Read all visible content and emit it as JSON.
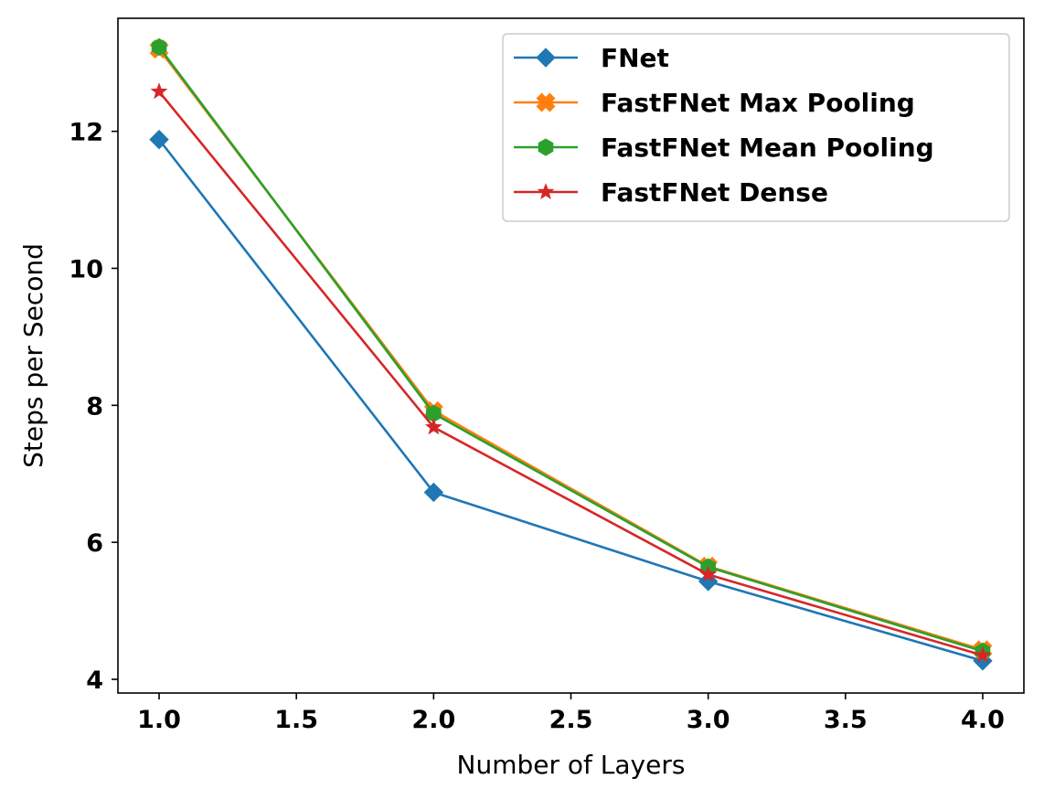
{
  "chart_data": {
    "type": "line",
    "title": "",
    "xlabel": "Number of Layers",
    "ylabel": "Steps per Second",
    "xlim": [
      0.85,
      4.15
    ],
    "ylim": [
      3.8,
      13.65
    ],
    "xticks": [
      1.0,
      1.5,
      2.0,
      2.5,
      3.0,
      3.5,
      4.0
    ],
    "xtick_labels": [
      "1.0",
      "1.5",
      "2.0",
      "2.5",
      "3.0",
      "3.5",
      "4.0"
    ],
    "yticks": [
      4,
      6,
      8,
      10,
      12
    ],
    "ytick_labels": [
      "4",
      "6",
      "8",
      "10",
      "12"
    ],
    "grid": false,
    "legend_position": "top-right",
    "x": [
      1.0,
      2.0,
      3.0,
      4.0
    ],
    "series": [
      {
        "name": "FNet",
        "values": [
          11.88,
          6.73,
          5.43,
          4.27
        ],
        "color": "#1f77b4",
        "marker": "diamond"
      },
      {
        "name": "FastFNet Max Pooling",
        "values": [
          13.2,
          7.92,
          5.65,
          4.43
        ],
        "color": "#ff7f0e",
        "marker": "cross"
      },
      {
        "name": "FastFNet Mean Pooling",
        "values": [
          13.23,
          7.88,
          5.64,
          4.41
        ],
        "color": "#2ca02c",
        "marker": "hexagon"
      },
      {
        "name": "FastFNet Dense",
        "values": [
          12.58,
          7.68,
          5.53,
          4.35
        ],
        "color": "#d62728",
        "marker": "star"
      }
    ]
  }
}
